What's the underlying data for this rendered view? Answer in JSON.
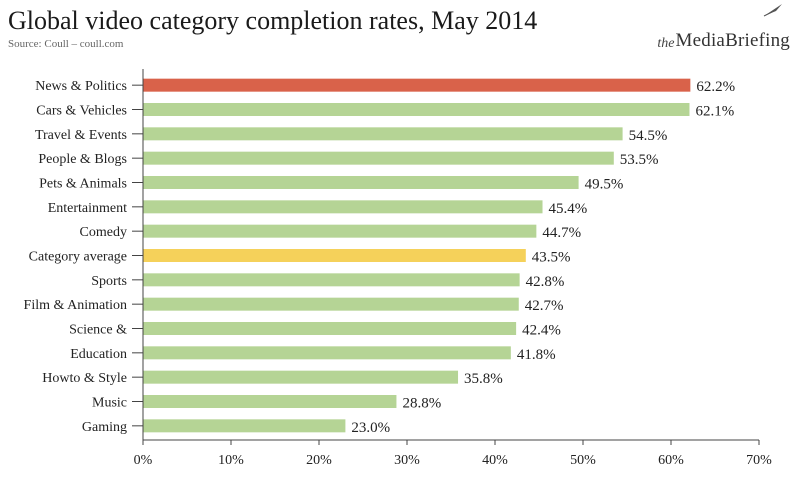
{
  "header": {
    "title": "Global video category completion rates, May 2014",
    "source": "Source: Coull – coull.com"
  },
  "logo": {
    "prefix": "the",
    "brand": "MediaBriefing",
    "icon": "quill-icon"
  },
  "colors": {
    "highlight": "#d9624a",
    "average": "#f5d15a",
    "default": "#b5d495",
    "axis": "#444444",
    "text": "#222222"
  },
  "chart_data": {
    "type": "bar",
    "orientation": "horizontal",
    "title": "Global video category completion rates, May 2014",
    "xlabel": "",
    "ylabel": "",
    "xlim": [
      0,
      70
    ],
    "xticks": [
      0,
      10,
      20,
      30,
      40,
      50,
      60,
      70
    ],
    "xtick_labels": [
      "0%",
      "10%",
      "20%",
      "30%",
      "40%",
      "50%",
      "60%",
      "70%"
    ],
    "grid": false,
    "legend": "none",
    "categories": [
      "News & Politics",
      "Cars & Vehicles",
      "Travel & Events",
      "People & Blogs",
      "Pets & Animals",
      "Entertainment",
      "Comedy",
      "Category average",
      "Sports",
      "Film & Animation",
      "Science &",
      "Education",
      "Howto & Style",
      "Music",
      "Gaming"
    ],
    "values": [
      62.2,
      62.1,
      54.5,
      53.5,
      49.5,
      45.4,
      44.7,
      43.5,
      42.8,
      42.7,
      42.4,
      41.8,
      35.8,
      28.8,
      23.0
    ],
    "value_labels": [
      "62.2%",
      "62.1%",
      "54.5%",
      "53.5%",
      "49.5%",
      "45.4%",
      "44.7%",
      "43.5%",
      "42.8%",
      "42.7%",
      "42.4%",
      "41.8%",
      "35.8%",
      "28.8%",
      "23.0%"
    ],
    "highlighted": {
      "News & Politics": "highlight",
      "Category average": "average"
    }
  }
}
